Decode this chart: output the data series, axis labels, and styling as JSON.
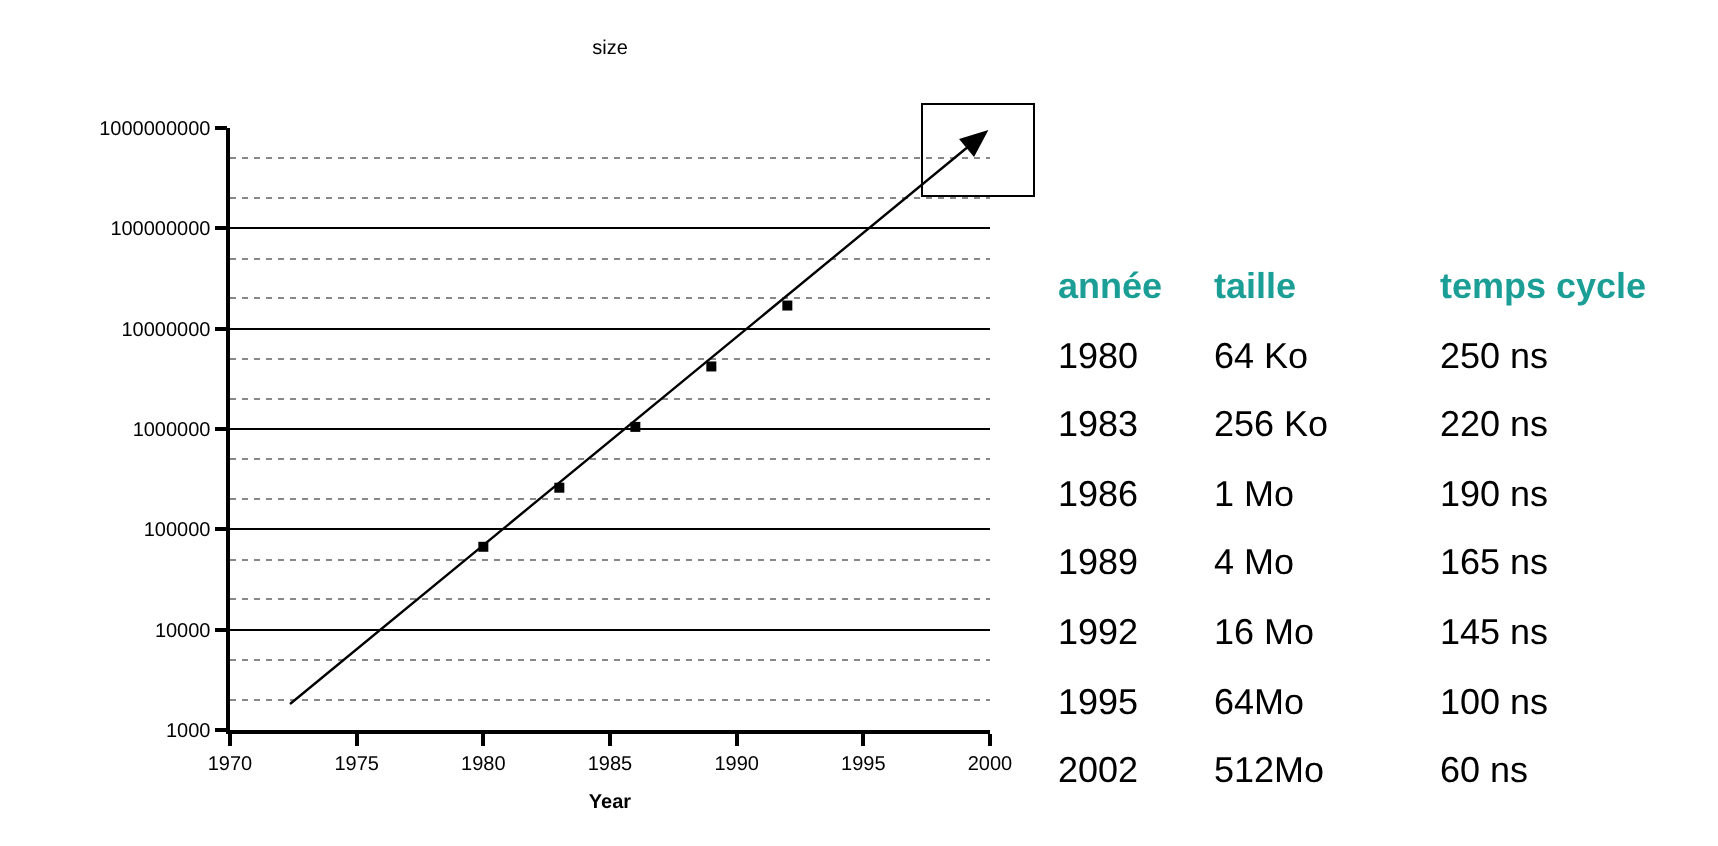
{
  "chart_data": {
    "type": "scatter",
    "title": "size",
    "xlabel": "Year",
    "xlim": [
      1970,
      2000
    ],
    "xticks": [
      1970,
      1975,
      1980,
      1985,
      1990,
      1995,
      2000
    ],
    "ylim": [
      1000,
      1000000000
    ],
    "yticks": [
      1000,
      10000,
      100000,
      1000000,
      10000000,
      100000000,
      1000000000
    ],
    "log": "y",
    "grid": "y",
    "marker": "square",
    "series": [
      {
        "color": "#000000",
        "x": [
          1980,
          1983,
          1986,
          1989,
          1992
        ],
        "values": [
          67000,
          260000,
          1050000,
          4200000,
          17000000
        ]
      }
    ],
    "annotations": [
      "année",
      "taille",
      "temps cycle",
      "1980",
      "64 Ko",
      "250 ns",
      "1983",
      "256 Ko",
      "220 ns",
      "1986",
      "1 Mo",
      "190 ns",
      "1989",
      "4 Mo",
      "165 ns",
      "1992",
      "16 Mo",
      "145 ns",
      "1995",
      "64Mo",
      "100 ns",
      "2002",
      "512Mo",
      "60 ns"
    ]
  }
}
